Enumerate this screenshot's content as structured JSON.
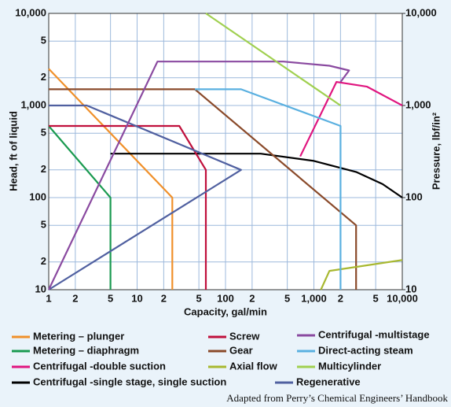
{
  "chart_data": {
    "type": "line",
    "xlabel": "Capacity, gal/min",
    "ylabel": "Head, ft of liquid",
    "y2label": "Pressure, lbf/in²",
    "caption": "Adapted from Perry’s Chemical Engineers’ Handbook",
    "xscale": "log",
    "yscale": "log",
    "grid": true,
    "xlim": [
      1,
      10000
    ],
    "xticks": [
      1,
      2,
      5,
      10,
      {
        "value": 20,
        "label": "2"
      },
      {
        "value": 50,
        "label": "5"
      },
      100,
      {
        "value": 200,
        "label": "2"
      },
      {
        "value": 500,
        "label": "5"
      },
      {
        "value": 1000,
        "label": "1,000"
      },
      {
        "value": 2000,
        "label": "2"
      },
      {
        "value": 5000,
        "label": "5"
      },
      {
        "value": 10000,
        "label": "10,000"
      }
    ],
    "ylim": [
      10,
      10000
    ],
    "yticks": [
      10,
      {
        "value": 20,
        "label": "2"
      },
      {
        "value": 50,
        "label": "5"
      },
      100,
      {
        "value": 200,
        "label": "2"
      },
      {
        "value": 500,
        "label": "5"
      },
      {
        "value": 1000,
        "label": "1,000"
      },
      {
        "value": 2000,
        "label": "2"
      },
      {
        "value": 5000,
        "label": "5"
      },
      {
        "value": 10000,
        "label": "10,000"
      }
    ],
    "y2lim": [
      10,
      10000
    ],
    "y2ticks": [
      10,
      100,
      {
        "value": 1000,
        "label": "1,000"
      },
      {
        "value": 10000,
        "label": "10,000"
      }
    ],
    "series": [
      {
        "name": "Metering – plunger",
        "color": "#f0902a",
        "x": [
          1,
          25,
          25
        ],
        "values": [
          2500,
          100,
          10
        ]
      },
      {
        "name": "Metering – diaphragm",
        "color": "#1a9a50",
        "x": [
          1,
          5,
          5
        ],
        "values": [
          600,
          100,
          10
        ]
      },
      {
        "name": "Centrifugal -double suction",
        "color": "#e0157f",
        "x": [
          700,
          1800,
          4000,
          10000
        ],
        "values": [
          280,
          1800,
          1600,
          1000
        ]
      },
      {
        "name": "Centrifugal -single stage, single suction",
        "color": "#000000",
        "x": [
          5,
          250,
          1000,
          3000,
          6000,
          10000
        ],
        "values": [
          300,
          300,
          250,
          190,
          140,
          100
        ]
      },
      {
        "name": "Screw",
        "color": "#c0103c",
        "x": [
          1,
          30,
          60,
          60
        ],
        "values": [
          600,
          600,
          200,
          10
        ]
      },
      {
        "name": "Gear",
        "color": "#8a4a2a",
        "x": [
          1,
          45,
          3000,
          3000
        ],
        "values": [
          1500,
          1500,
          50,
          10
        ]
      },
      {
        "name": "Axial flow",
        "color": "#a8b830",
        "x": [
          1200,
          1500,
          10000
        ],
        "values": [
          10,
          16,
          21
        ]
      },
      {
        "name": "Regenerative",
        "color": "#5060a0",
        "x": [
          1,
          2.7,
          150,
          1
        ],
        "values": [
          1000,
          1000,
          200,
          10
        ]
      },
      {
        "name": "Centrifugal -multistage",
        "color": "#8a4aa0",
        "x": [
          1,
          17,
          450,
          1500,
          2500,
          2000
        ],
        "values": [
          10,
          3000,
          3000,
          2700,
          2400,
          1800
        ]
      },
      {
        "name": "Direct-acting steam",
        "color": "#5ab0e0",
        "x": [
          45,
          150,
          2000,
          2000
        ],
        "values": [
          1500,
          1500,
          600,
          10
        ]
      },
      {
        "name": "Multicylinder",
        "color": "#a0d050",
        "x": [
          60,
          2000
        ],
        "values": [
          10000,
          1000
        ]
      }
    ]
  }
}
